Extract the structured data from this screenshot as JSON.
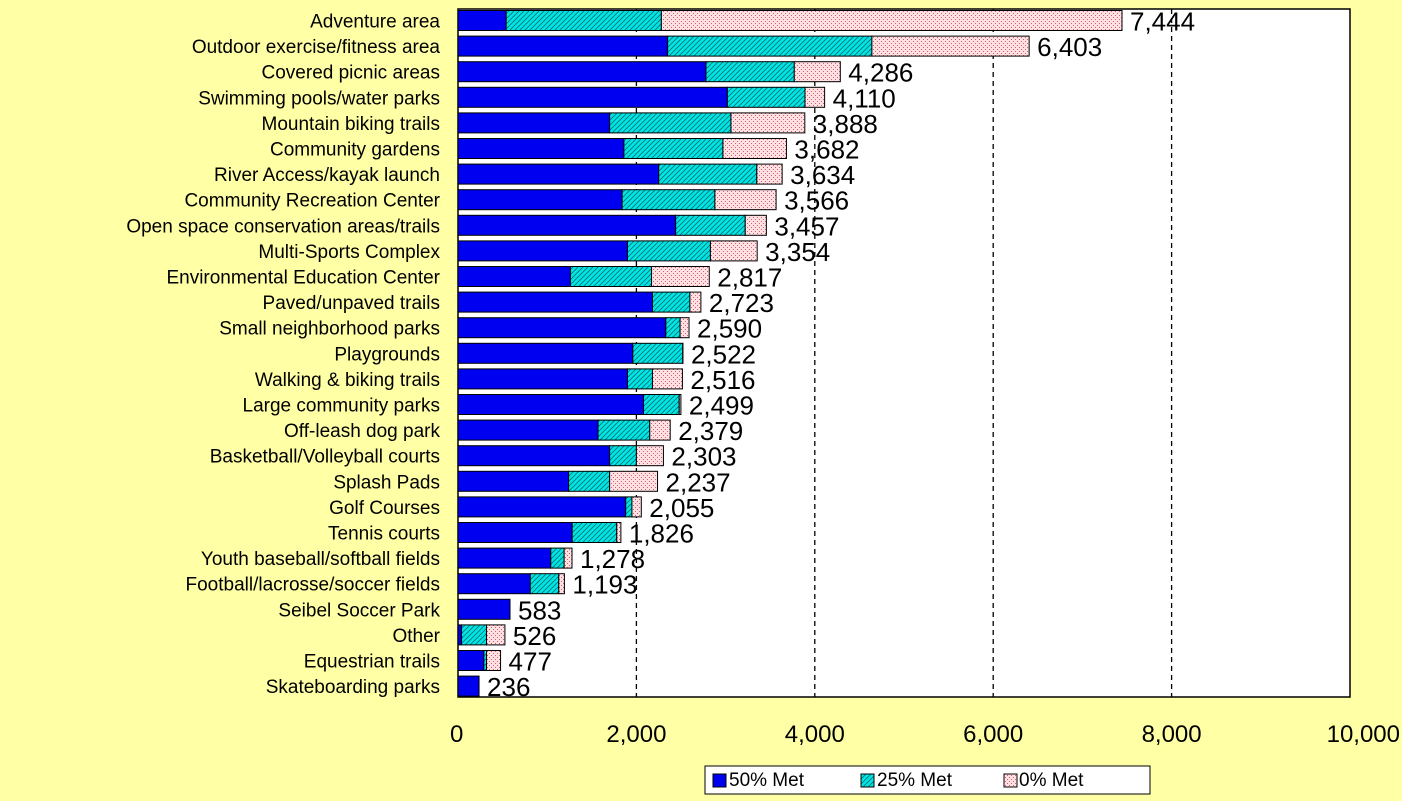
{
  "chart_data": {
    "type": "bar",
    "orientation": "horizontal",
    "stacked": true,
    "title": "",
    "xlabel": "",
    "ylabel": "",
    "xlim": [
      0,
      10000
    ],
    "x_ticks": [
      0,
      2000,
      4000,
      6000,
      8000,
      10000
    ],
    "x_tick_labels": [
      "0",
      "2,000",
      "4,000",
      "6,000",
      "8,000",
      "10,000"
    ],
    "grid": "vertical dashed",
    "legend_position": "bottom",
    "categories": [
      "Adventure area",
      "Outdoor exercise/fitness area",
      "Covered picnic areas",
      "Swimming pools/water parks",
      "Mountain biking trails",
      "Community gardens",
      "River Access/kayak launch",
      "Community Recreation Center",
      "Open space conservation areas/trails",
      "Multi-Sports Complex",
      "Environmental Education Center",
      "Paved/unpaved trails",
      "Small neighborhood parks",
      "Playgrounds",
      "Walking & biking trails",
      "Large community parks",
      "Off-leash dog park",
      "Basketball/Volleyball courts",
      "Splash Pads",
      "Golf Courses",
      "Tennis courts",
      "Youth baseball/softball fields",
      "Football/lacrosse/soccer fields",
      "Seibel Soccer Park",
      "Other",
      "Equestrian trails",
      "Skateboarding parks"
    ],
    "series": [
      {
        "name": "50% Met",
        "color": "#0000F0",
        "pattern": "solid",
        "values": [
          540,
          2350,
          2780,
          3020,
          1700,
          1860,
          2250,
          1840,
          2440,
          1900,
          1260,
          2180,
          2330,
          1960,
          1900,
          2080,
          1570,
          1700,
          1240,
          1880,
          1280,
          1040,
          810,
          583,
          40,
          290,
          236
        ]
      },
      {
        "name": "25% Met",
        "color": "#00E6E6",
        "pattern": "diagonal",
        "values": [
          1740,
          2290,
          990,
          870,
          1360,
          1110,
          1100,
          1040,
          780,
          930,
          910,
          420,
          160,
          560,
          280,
          400,
          580,
          300,
          460,
          70,
          500,
          150,
          320,
          0,
          280,
          30,
          0
        ]
      },
      {
        "name": "0% Met",
        "color": "#FFD9DC",
        "pattern": "dots",
        "values": [
          5164,
          1763,
          516,
          220,
          828,
          712,
          284,
          686,
          237,
          524,
          647,
          123,
          100,
          2,
          336,
          19,
          229,
          303,
          537,
          105,
          46,
          88,
          63,
          0,
          206,
          157,
          0
        ]
      }
    ],
    "totals": [
      7444,
      6403,
      4286,
      4110,
      3888,
      3682,
      3634,
      3566,
      3457,
      3354,
      2817,
      2723,
      2590,
      2522,
      2516,
      2499,
      2379,
      2303,
      2237,
      2055,
      1826,
      1278,
      1193,
      583,
      526,
      477,
      236
    ],
    "total_labels": [
      "7,444",
      "6,403",
      "4,286",
      "4,110",
      "3,888",
      "3,682",
      "3,634",
      "3,566",
      "3,457",
      "3,354",
      "2,817",
      "2,723",
      "2,590",
      "2,522",
      "2,516",
      "2,499",
      "2,379",
      "2,303",
      "2,237",
      "2,055",
      "1,826",
      "1,278",
      "1,193",
      "583",
      "526",
      "477",
      "236"
    ]
  }
}
